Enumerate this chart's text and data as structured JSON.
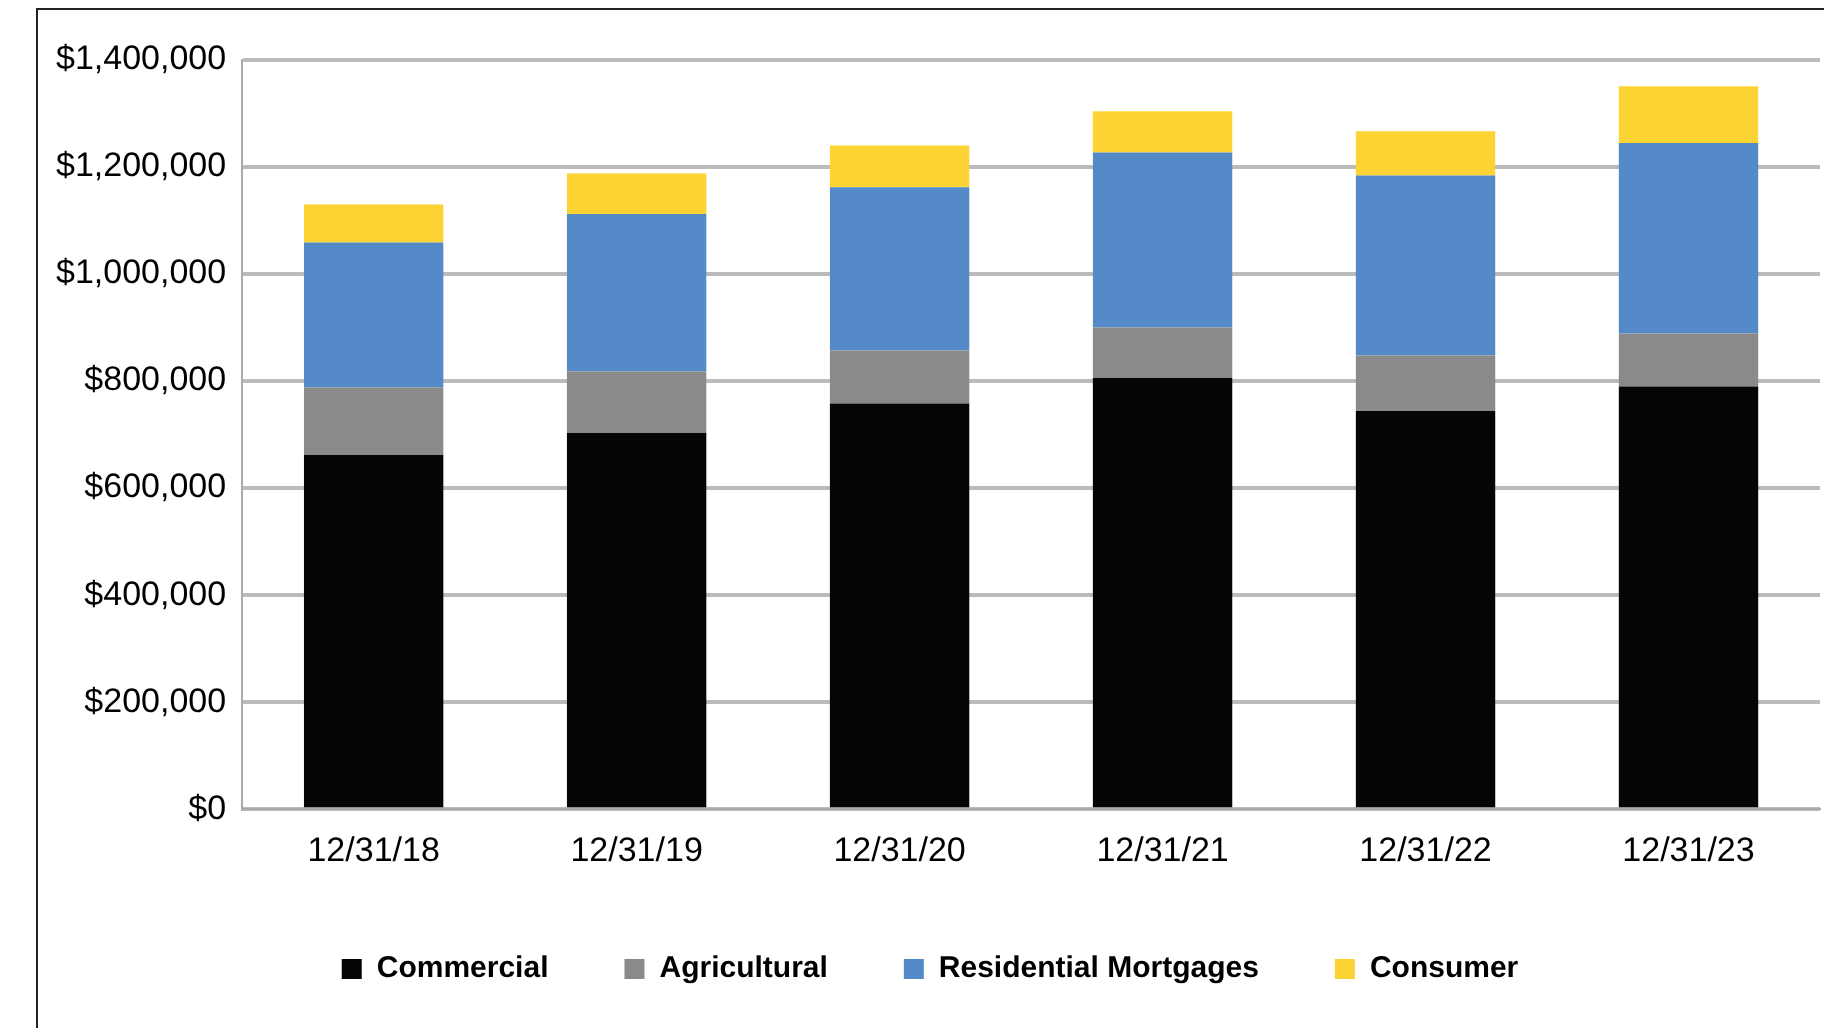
{
  "chart_data": {
    "type": "bar",
    "stacked": true,
    "categories": [
      "12/31/18",
      "12/31/19",
      "12/31/20",
      "12/31/21",
      "12/31/22",
      "12/31/23"
    ],
    "series": [
      {
        "name": "Commercial",
        "color": "#050505",
        "values": [
          662000,
          703000,
          758000,
          806000,
          744000,
          790000
        ]
      },
      {
        "name": "Agricultural",
        "color": "#8a8a8a",
        "values": [
          126000,
          115000,
          99000,
          94000,
          104000,
          99000
        ]
      },
      {
        "name": "Residential Mortgages",
        "color": "#558ac8",
        "values": [
          271000,
          294000,
          305000,
          327000,
          336000,
          356000
        ]
      },
      {
        "name": "Consumer",
        "color": "#fdd334",
        "values": [
          71000,
          76000,
          78000,
          77000,
          83000,
          106000
        ]
      }
    ],
    "ylim": [
      0,
      1400000
    ],
    "yticks": [
      {
        "value": 0,
        "label": "$0"
      },
      {
        "value": 200000,
        "label": "$200,000"
      },
      {
        "value": 400000,
        "label": "$400,000"
      },
      {
        "value": 600000,
        "label": "$600,000"
      },
      {
        "value": 800000,
        "label": "$800,000"
      },
      {
        "value": 1000000,
        "label": "$1,000,000"
      },
      {
        "value": 1200000,
        "label": "$1,200,000"
      },
      {
        "value": 1400000,
        "label": "$1,400,000"
      }
    ],
    "grid": "y",
    "legend": "bottom"
  }
}
